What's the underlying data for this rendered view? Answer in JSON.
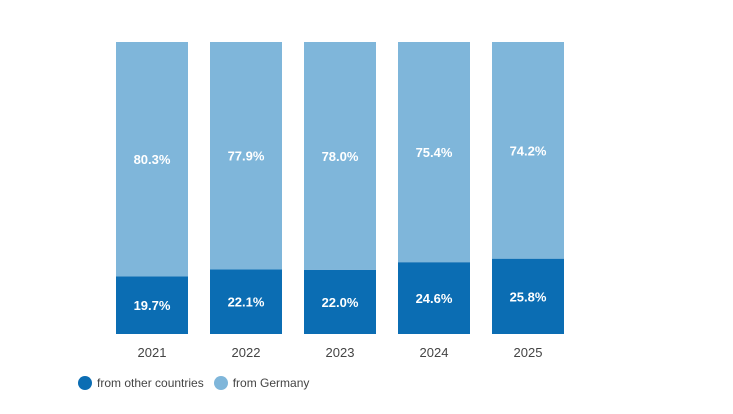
{
  "chart_data": {
    "type": "bar",
    "stacked": true,
    "categories": [
      "2021",
      "2022",
      "2023",
      "2024",
      "2025"
    ],
    "series": [
      {
        "name": "from other countries",
        "values": [
          19.7,
          22.1,
          22.0,
          24.6,
          25.8
        ],
        "labels": [
          "19.7%",
          "22.1%",
          "22.0%",
          "24.6%",
          "25.8%"
        ],
        "color": "#0b6db3"
      },
      {
        "name": "from Germany",
        "values": [
          80.3,
          77.9,
          78.0,
          75.4,
          74.2
        ],
        "labels": [
          "80.3%",
          "77.9%",
          "78.0%",
          "75.4%",
          "74.2%"
        ],
        "color": "#7fb6da"
      }
    ],
    "title": "",
    "xlabel": "",
    "ylabel": "",
    "ylim": [
      0,
      100
    ],
    "grid": false,
    "legend_position": "bottom-left"
  },
  "legend": {
    "items": [
      {
        "label": "from other countries",
        "color": "#0b6db3"
      },
      {
        "label": "from Germany",
        "color": "#7fb6da"
      }
    ]
  }
}
